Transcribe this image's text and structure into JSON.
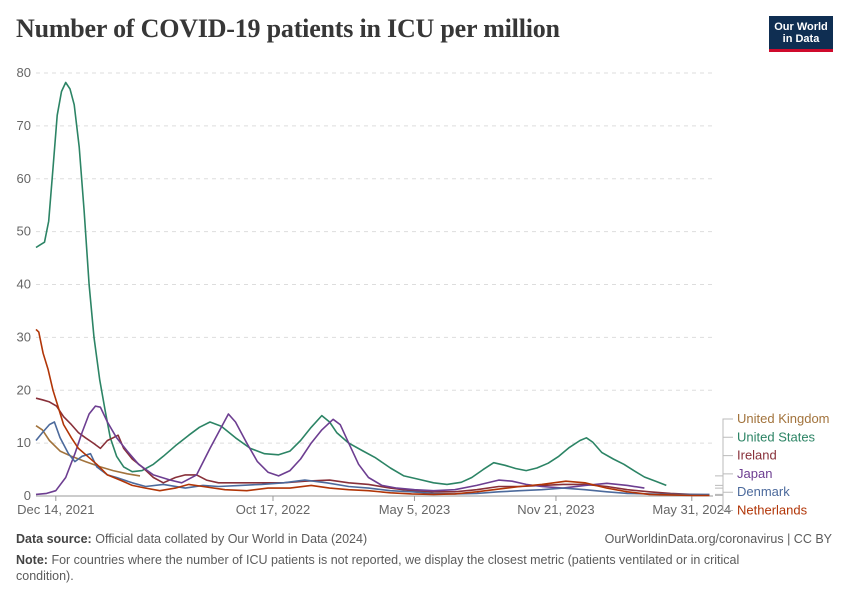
{
  "header": {
    "title": "Number of COVID-19 patients in ICU per million",
    "logo_line1": "Our World",
    "logo_line2": "in Data"
  },
  "footer": {
    "source_label": "Data source:",
    "source_text": "Official data collated by Our World in Data (2024)",
    "credit": "OurWorldinData.org/coronavirus | CC BY",
    "note_label": "Note:",
    "note_text": "For countries where the number of ICU patients is not reported, we display the closest metric (patients ventilated or in critical condition)."
  },
  "chart_data": {
    "type": "line",
    "title": "Number of COVID-19 patients in ICU per million",
    "x_tick_labels": [
      "Dec 14, 2021",
      "Oct 17, 2022",
      "May 5, 2023",
      "Nov 21, 2023",
      "May 31, 2024"
    ],
    "x_ticks": [
      "2021-12-14",
      "2022-10-17",
      "2023-05-05",
      "2023-11-21",
      "2024-05-31"
    ],
    "xlim": [
      "2021-11-16",
      "2024-06-30"
    ],
    "ylim": [
      0,
      80
    ],
    "y_ticks": [
      0,
      10,
      20,
      30,
      40,
      50,
      60,
      70,
      80
    ],
    "grid": true,
    "legend_position": "right",
    "series": [
      {
        "name": "United Kingdom",
        "color": "#a2733c",
        "points": [
          [
            "2021-11-16",
            13.3
          ],
          [
            "2021-11-25",
            12.5
          ],
          [
            "2021-12-05",
            10.5
          ],
          [
            "2021-12-20",
            8.5
          ],
          [
            "2022-01-05",
            7.5
          ],
          [
            "2022-01-25",
            6.5
          ],
          [
            "2022-02-15",
            5.5
          ],
          [
            "2022-03-05",
            4.8
          ],
          [
            "2022-03-25",
            4.2
          ],
          [
            "2022-04-12",
            3.8
          ]
        ]
      },
      {
        "name": "United States",
        "color": "#2c8465",
        "points": [
          [
            "2021-11-16",
            47
          ],
          [
            "2021-11-22",
            47.5
          ],
          [
            "2021-11-28",
            48
          ],
          [
            "2021-12-04",
            52
          ],
          [
            "2021-12-10",
            62
          ],
          [
            "2021-12-16",
            72
          ],
          [
            "2021-12-22",
            76.5
          ],
          [
            "2021-12-28",
            78.2
          ],
          [
            "2022-01-03",
            77
          ],
          [
            "2022-01-09",
            74
          ],
          [
            "2022-01-16",
            66
          ],
          [
            "2022-01-23",
            54
          ],
          [
            "2022-01-30",
            40
          ],
          [
            "2022-02-06",
            30
          ],
          [
            "2022-02-14",
            22
          ],
          [
            "2022-02-22",
            16
          ],
          [
            "2022-03-01",
            11
          ],
          [
            "2022-03-10",
            7.5
          ],
          [
            "2022-03-20",
            5.5
          ],
          [
            "2022-04-01",
            4.6
          ],
          [
            "2022-04-15",
            4.8
          ],
          [
            "2022-05-01",
            6
          ],
          [
            "2022-05-15",
            7.5
          ],
          [
            "2022-06-01",
            9.5
          ],
          [
            "2022-06-20",
            11.5
          ],
          [
            "2022-07-05",
            13
          ],
          [
            "2022-07-20",
            14
          ],
          [
            "2022-08-05",
            13.2
          ],
          [
            "2022-08-25",
            11
          ],
          [
            "2022-09-15",
            9
          ],
          [
            "2022-10-05",
            8
          ],
          [
            "2022-10-25",
            7.8
          ],
          [
            "2022-11-10",
            8.5
          ],
          [
            "2022-11-25",
            10.5
          ],
          [
            "2022-12-10",
            13
          ],
          [
            "2022-12-25",
            15.2
          ],
          [
            "2023-01-05",
            14
          ],
          [
            "2023-01-15",
            12
          ],
          [
            "2023-02-01",
            10
          ],
          [
            "2023-02-20",
            8.6
          ],
          [
            "2023-03-10",
            7.3
          ],
          [
            "2023-04-01",
            5.3
          ],
          [
            "2023-04-20",
            3.8
          ],
          [
            "2023-05-10",
            3.2
          ],
          [
            "2023-06-01",
            2.5
          ],
          [
            "2023-06-20",
            2.2
          ],
          [
            "2023-07-10",
            2.6
          ],
          [
            "2023-07-25",
            3.5
          ],
          [
            "2023-08-10",
            5
          ],
          [
            "2023-08-25",
            6.3
          ],
          [
            "2023-09-10",
            5.8
          ],
          [
            "2023-09-25",
            5.2
          ],
          [
            "2023-10-10",
            4.8
          ],
          [
            "2023-10-25",
            5.3
          ],
          [
            "2023-11-10",
            6.2
          ],
          [
            "2023-11-25",
            7.5
          ],
          [
            "2023-12-10",
            9.2
          ],
          [
            "2023-12-25",
            10.5
          ],
          [
            "2024-01-03",
            11
          ],
          [
            "2024-01-12",
            10.2
          ],
          [
            "2024-01-25",
            8.2
          ],
          [
            "2024-02-10",
            7
          ],
          [
            "2024-02-25",
            6
          ],
          [
            "2024-03-10",
            4.8
          ],
          [
            "2024-03-25",
            3.6
          ],
          [
            "2024-04-10",
            2.8
          ],
          [
            "2024-04-25",
            2
          ]
        ]
      },
      {
        "name": "Ireland",
        "color": "#883039",
        "points": [
          [
            "2021-11-16",
            18.5
          ],
          [
            "2021-11-25",
            18.2
          ],
          [
            "2021-12-05",
            17.8
          ],
          [
            "2021-12-15",
            17
          ],
          [
            "2021-12-25",
            15
          ],
          [
            "2022-01-05",
            13.5
          ],
          [
            "2022-01-15",
            12
          ],
          [
            "2022-01-25",
            11
          ],
          [
            "2022-02-05",
            10
          ],
          [
            "2022-02-15",
            9
          ],
          [
            "2022-02-25",
            10.5
          ],
          [
            "2022-03-05",
            11
          ],
          [
            "2022-03-12",
            11.5
          ],
          [
            "2022-03-20",
            9
          ],
          [
            "2022-04-01",
            7
          ],
          [
            "2022-04-15",
            5.5
          ],
          [
            "2022-05-01",
            3.5
          ],
          [
            "2022-05-15",
            2.5
          ],
          [
            "2022-06-01",
            3.5
          ],
          [
            "2022-06-15",
            4
          ],
          [
            "2022-07-01",
            4
          ],
          [
            "2022-07-15",
            3
          ],
          [
            "2022-08-01",
            2.5
          ],
          [
            "2022-09-01",
            2.5
          ],
          [
            "2022-10-01",
            2.5
          ],
          [
            "2022-11-01",
            2.5
          ],
          [
            "2022-12-01",
            2.8
          ],
          [
            "2023-01-05",
            3
          ],
          [
            "2023-02-01",
            2.5
          ],
          [
            "2023-03-01",
            2.2
          ],
          [
            "2023-04-01",
            1.5
          ],
          [
            "2023-05-01",
            1
          ],
          [
            "2023-06-01",
            0.8
          ],
          [
            "2023-07-01",
            0.8
          ],
          [
            "2023-08-01",
            1.2
          ],
          [
            "2023-09-01",
            1.8
          ],
          [
            "2023-10-01",
            1.8
          ],
          [
            "2023-11-01",
            2
          ],
          [
            "2023-12-01",
            2.2
          ],
          [
            "2024-01-01",
            2.2
          ],
          [
            "2024-02-01",
            1.8
          ],
          [
            "2024-03-01",
            1.2
          ],
          [
            "2024-04-01",
            0.8
          ],
          [
            "2024-05-01",
            0.5
          ],
          [
            "2024-06-01",
            0.3
          ],
          [
            "2024-06-25",
            0.2
          ]
        ]
      },
      {
        "name": "Japan",
        "color": "#6d3e91",
        "points": [
          [
            "2021-11-16",
            0.3
          ],
          [
            "2021-12-01",
            0.5
          ],
          [
            "2021-12-14",
            1
          ],
          [
            "2021-12-28",
            3.5
          ],
          [
            "2022-01-10",
            8
          ],
          [
            "2022-01-20",
            12
          ],
          [
            "2022-01-30",
            15.5
          ],
          [
            "2022-02-08",
            17
          ],
          [
            "2022-02-15",
            16.8
          ],
          [
            "2022-02-25",
            14
          ],
          [
            "2022-03-10",
            11
          ],
          [
            "2022-03-25",
            8.5
          ],
          [
            "2022-04-10",
            6
          ],
          [
            "2022-05-01",
            4
          ],
          [
            "2022-05-25",
            3
          ],
          [
            "2022-06-10",
            2.5
          ],
          [
            "2022-07-01",
            4
          ],
          [
            "2022-07-20",
            9
          ],
          [
            "2022-08-05",
            13
          ],
          [
            "2022-08-15",
            15.5
          ],
          [
            "2022-08-25",
            14
          ],
          [
            "2022-09-10",
            10
          ],
          [
            "2022-09-25",
            6.5
          ],
          [
            "2022-10-10",
            4.5
          ],
          [
            "2022-10-25",
            3.8
          ],
          [
            "2022-11-10",
            4.8
          ],
          [
            "2022-11-25",
            7
          ],
          [
            "2022-12-10",
            10
          ],
          [
            "2022-12-25",
            12.5
          ],
          [
            "2023-01-10",
            14.5
          ],
          [
            "2023-01-20",
            13.5
          ],
          [
            "2023-02-01",
            10
          ],
          [
            "2023-02-15",
            6
          ],
          [
            "2023-03-01",
            3.5
          ],
          [
            "2023-03-20",
            2
          ],
          [
            "2023-04-10",
            1.5
          ],
          [
            "2023-05-05",
            1.2
          ],
          [
            "2023-06-01",
            1
          ],
          [
            "2023-07-01",
            1.2
          ],
          [
            "2023-08-01",
            2
          ],
          [
            "2023-09-01",
            3
          ],
          [
            "2023-09-20",
            2.8
          ],
          [
            "2023-10-10",
            2.2
          ],
          [
            "2023-11-01",
            1.8
          ],
          [
            "2023-12-01",
            1.5
          ],
          [
            "2024-01-01",
            2
          ],
          [
            "2024-02-01",
            2.4
          ],
          [
            "2024-03-01",
            2
          ],
          [
            "2024-03-25",
            1.5
          ]
        ]
      },
      {
        "name": "Denmark",
        "color": "#4c6a9c",
        "points": [
          [
            "2021-11-16",
            10.5
          ],
          [
            "2021-11-25",
            12
          ],
          [
            "2021-12-05",
            13.5
          ],
          [
            "2021-12-12",
            14
          ],
          [
            "2021-12-20",
            11
          ],
          [
            "2022-01-01",
            8
          ],
          [
            "2022-01-10",
            6.5
          ],
          [
            "2022-01-20",
            7.5
          ],
          [
            "2022-02-01",
            8
          ],
          [
            "2022-02-10",
            5.5
          ],
          [
            "2022-02-25",
            4
          ],
          [
            "2022-03-10",
            3.5
          ],
          [
            "2022-04-01",
            2.5
          ],
          [
            "2022-04-20",
            1.8
          ],
          [
            "2022-05-15",
            2.2
          ],
          [
            "2022-06-15",
            1.5
          ],
          [
            "2022-07-10",
            2
          ],
          [
            "2022-08-01",
            1.8
          ],
          [
            "2022-09-01",
            2
          ],
          [
            "2022-10-01",
            2.2
          ],
          [
            "2022-11-01",
            2.5
          ],
          [
            "2022-12-01",
            3
          ],
          [
            "2023-01-01",
            2.5
          ],
          [
            "2023-02-01",
            1.8
          ],
          [
            "2023-03-01",
            1.5
          ],
          [
            "2023-04-01",
            1
          ],
          [
            "2023-05-01",
            0.8
          ],
          [
            "2023-06-01",
            0.5
          ],
          [
            "2023-07-01",
            0.4
          ],
          [
            "2023-08-01",
            0.5
          ],
          [
            "2023-09-01",
            0.8
          ],
          [
            "2023-10-01",
            1
          ],
          [
            "2023-11-01",
            1.2
          ],
          [
            "2023-12-01",
            1.5
          ],
          [
            "2024-01-01",
            1.2
          ],
          [
            "2024-02-01",
            0.8
          ],
          [
            "2024-03-01",
            0.5
          ],
          [
            "2024-04-01",
            0.4
          ],
          [
            "2024-05-01",
            0.3
          ],
          [
            "2024-06-01",
            0.3
          ],
          [
            "2024-06-25",
            0.3
          ]
        ]
      },
      {
        "name": "Netherlands",
        "color": "#b13507",
        "points": [
          [
            "2021-11-16",
            31.5
          ],
          [
            "2021-11-20",
            31
          ],
          [
            "2021-11-26",
            27
          ],
          [
            "2021-12-03",
            24
          ],
          [
            "2021-12-10",
            20
          ],
          [
            "2021-12-17",
            17
          ],
          [
            "2021-12-25",
            13.5
          ],
          [
            "2022-01-05",
            11
          ],
          [
            "2022-01-15",
            9
          ],
          [
            "2022-01-28",
            7.5
          ],
          [
            "2022-02-10",
            6
          ],
          [
            "2022-02-25",
            4
          ],
          [
            "2022-03-15",
            3
          ],
          [
            "2022-04-01",
            2
          ],
          [
            "2022-04-20",
            1.5
          ],
          [
            "2022-05-10",
            1
          ],
          [
            "2022-06-01",
            1.5
          ],
          [
            "2022-06-20",
            2.2
          ],
          [
            "2022-07-10",
            1.8
          ],
          [
            "2022-08-10",
            1.2
          ],
          [
            "2022-09-10",
            1
          ],
          [
            "2022-10-10",
            1.5
          ],
          [
            "2022-11-10",
            1.5
          ],
          [
            "2022-12-10",
            2
          ],
          [
            "2023-01-05",
            1.5
          ],
          [
            "2023-02-01",
            1.2
          ],
          [
            "2023-03-01",
            1
          ],
          [
            "2023-04-01",
            0.6
          ],
          [
            "2023-05-01",
            0.4
          ],
          [
            "2023-06-01",
            0.3
          ],
          [
            "2023-07-01",
            0.4
          ],
          [
            "2023-08-01",
            0.8
          ],
          [
            "2023-09-01",
            1.3
          ],
          [
            "2023-10-01",
            1.8
          ],
          [
            "2023-11-01",
            2.2
          ],
          [
            "2023-12-05",
            2.8
          ],
          [
            "2024-01-01",
            2.5
          ],
          [
            "2024-02-01",
            1.5
          ],
          [
            "2024-03-01",
            0.8
          ],
          [
            "2024-04-01",
            0.3
          ],
          [
            "2024-05-01",
            0.2
          ],
          [
            "2024-06-01",
            0.1
          ],
          [
            "2024-06-25",
            0.1
          ]
        ]
      }
    ]
  }
}
